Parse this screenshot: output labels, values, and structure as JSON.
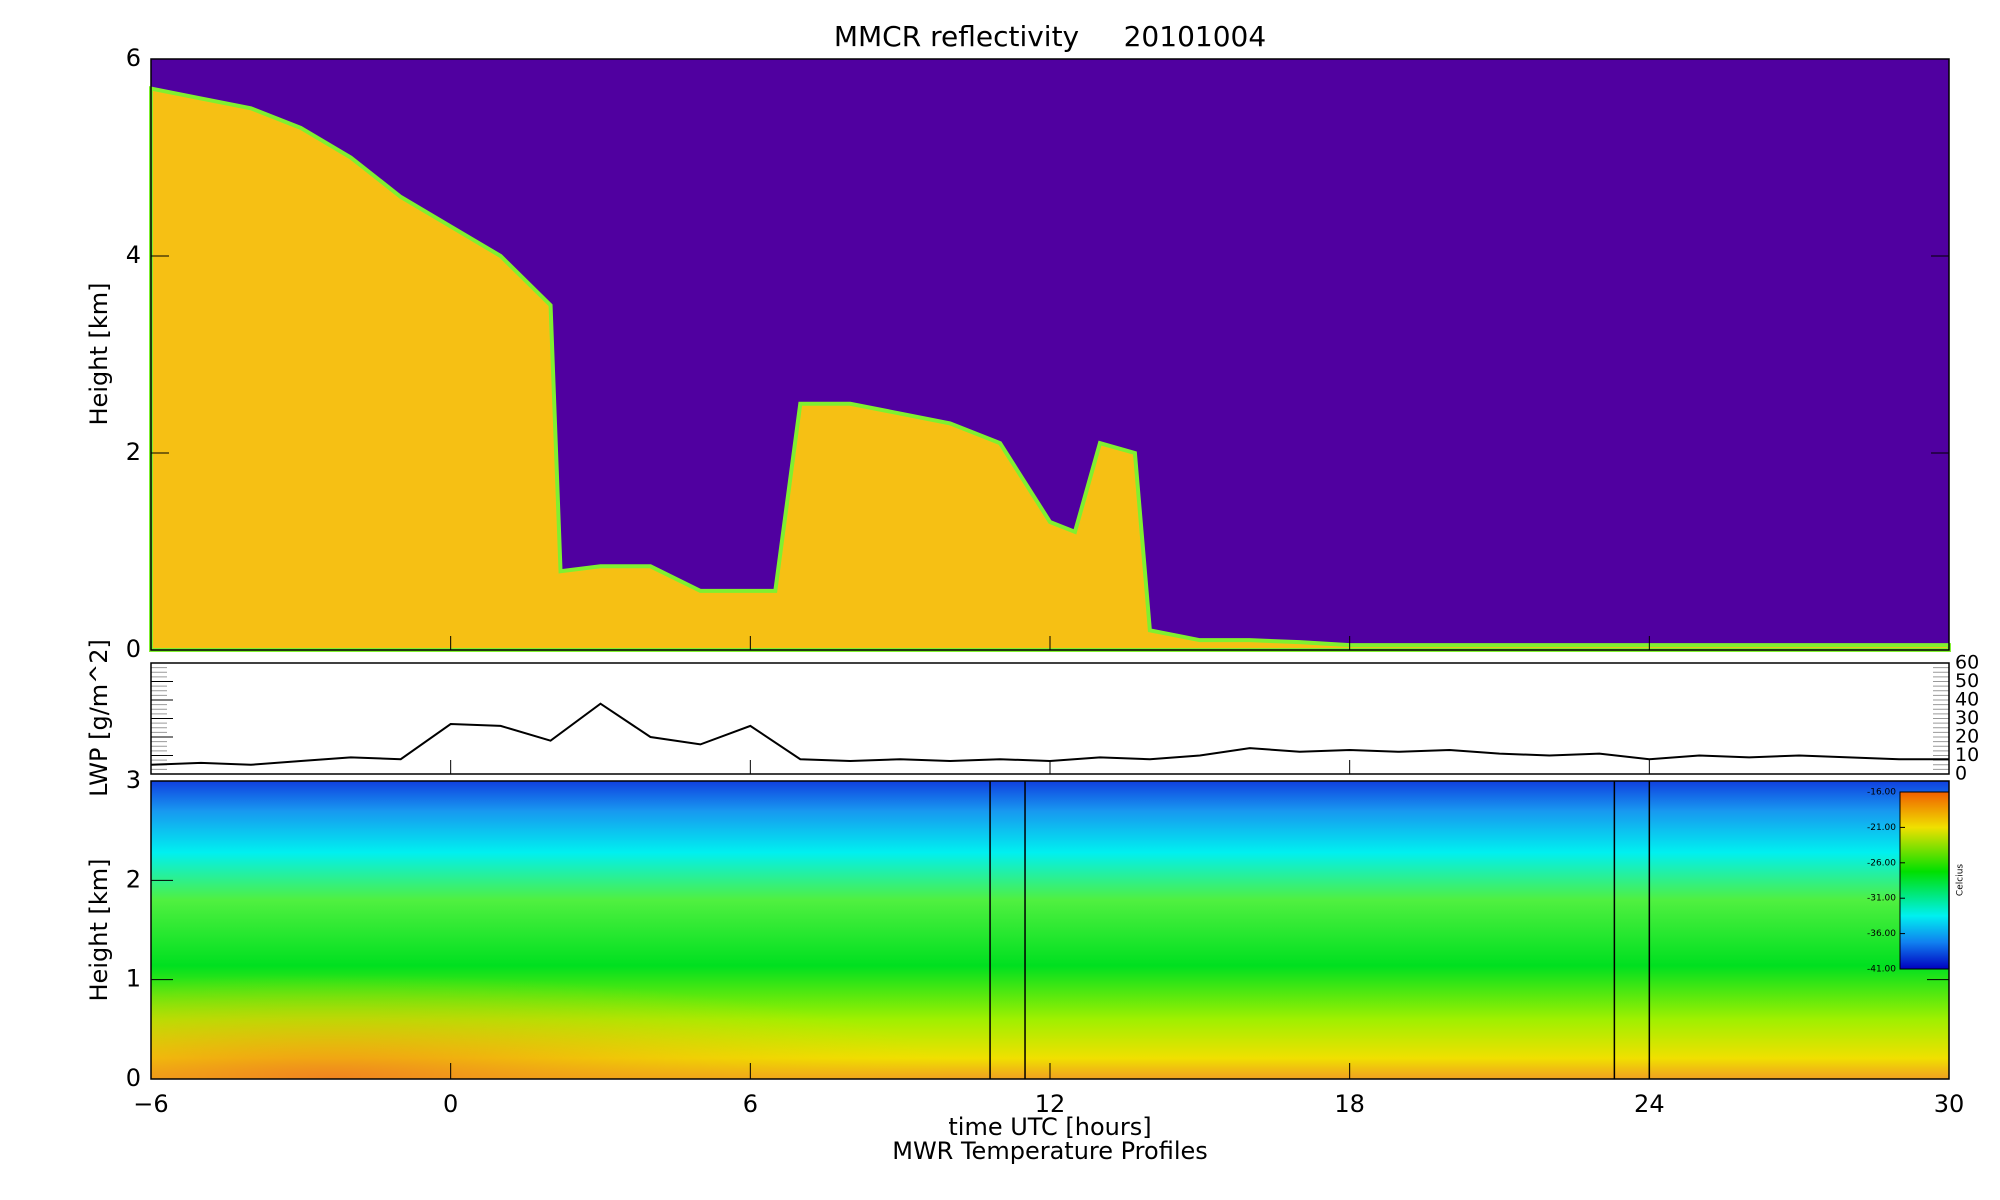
{
  "chart_data": [
    {
      "type": "area",
      "title": "MMCR reflectivity     20101004",
      "ylabel": "Height [km]",
      "xlim": [
        -6,
        30
      ],
      "ylim": [
        0,
        6
      ],
      "yticks": [
        0,
        2,
        4,
        6
      ],
      "background": "#5000a0",
      "color": "#f6c014",
      "edge_color": "#80f030",
      "x": [
        -6,
        -5,
        -4,
        -3,
        -2,
        -1,
        0,
        1,
        2,
        2.2,
        3,
        4,
        5,
        6,
        6.5,
        7,
        8,
        9,
        10,
        11,
        12,
        12.5,
        13,
        13.7,
        14,
        15,
        16,
        17,
        18,
        19,
        20,
        21,
        22,
        23,
        24,
        25,
        26,
        27,
        28,
        29,
        30
      ],
      "values": [
        5.7,
        5.6,
        5.5,
        5.3,
        5.0,
        4.6,
        4.3,
        4.0,
        3.5,
        0.8,
        0.85,
        0.85,
        0.6,
        0.6,
        0.6,
        2.5,
        2.5,
        2.4,
        2.3,
        2.1,
        1.3,
        1.2,
        2.1,
        2.0,
        0.2,
        0.1,
        0.1,
        0.08,
        0.05,
        0.05,
        0.05,
        0.05,
        0.05,
        0.05,
        0.05,
        0.05,
        0.05,
        0.05,
        0.05,
        0.05,
        0.05
      ]
    },
    {
      "type": "line",
      "ylabel": "LWP [g/m^2]",
      "xlim": [
        -6,
        30
      ],
      "ylim": [
        0,
        60
      ],
      "yticks": [
        0,
        10,
        20,
        30,
        40,
        50,
        60
      ],
      "color": "#000000",
      "x": [
        -6,
        -5,
        -4,
        -3,
        -2,
        -1,
        0,
        1,
        2,
        3,
        4,
        5,
        6,
        7,
        8,
        9,
        10,
        11,
        12,
        13,
        14,
        15,
        16,
        17,
        18,
        19,
        20,
        21,
        22,
        23,
        24,
        25,
        26,
        27,
        28,
        29,
        30
      ],
      "values": [
        5,
        6,
        5,
        7,
        9,
        8,
        27,
        26,
        18,
        38,
        20,
        16,
        26,
        8,
        7,
        8,
        7,
        8,
        7,
        9,
        8,
        10,
        14,
        12,
        13,
        12,
        13,
        11,
        10,
        11,
        8,
        10,
        9,
        10,
        9,
        8,
        8
      ]
    },
    {
      "type": "contour",
      "ylabel": "Height [km]",
      "xlabel": "time UTC [hours]",
      "subtitle": "MWR Temperature Profiles",
      "xlim": [
        -6,
        30
      ],
      "ylim": [
        0,
        3
      ],
      "yticks": [
        0,
        1,
        2,
        3
      ],
      "xticks": [
        {
          "value": -6,
          "label": "−6"
        },
        0,
        6,
        12,
        18,
        24,
        30
      ],
      "vlines": [
        10.8,
        11.5,
        23.3,
        24.0
      ],
      "colorbar_label": "Celcius",
      "colorbar_lim": [
        -41,
        -16
      ],
      "colorbar_ticks": [
        {
          "value": -16,
          "label": "-16.00"
        },
        {
          "value": -21,
          "label": "-21.00"
        },
        {
          "value": -26,
          "label": "-26.00"
        },
        {
          "value": -31,
          "label": "-31.00"
        },
        {
          "value": -36,
          "label": "-36.00"
        },
        {
          "value": -41,
          "label": "-41.00"
        }
      ]
    }
  ]
}
